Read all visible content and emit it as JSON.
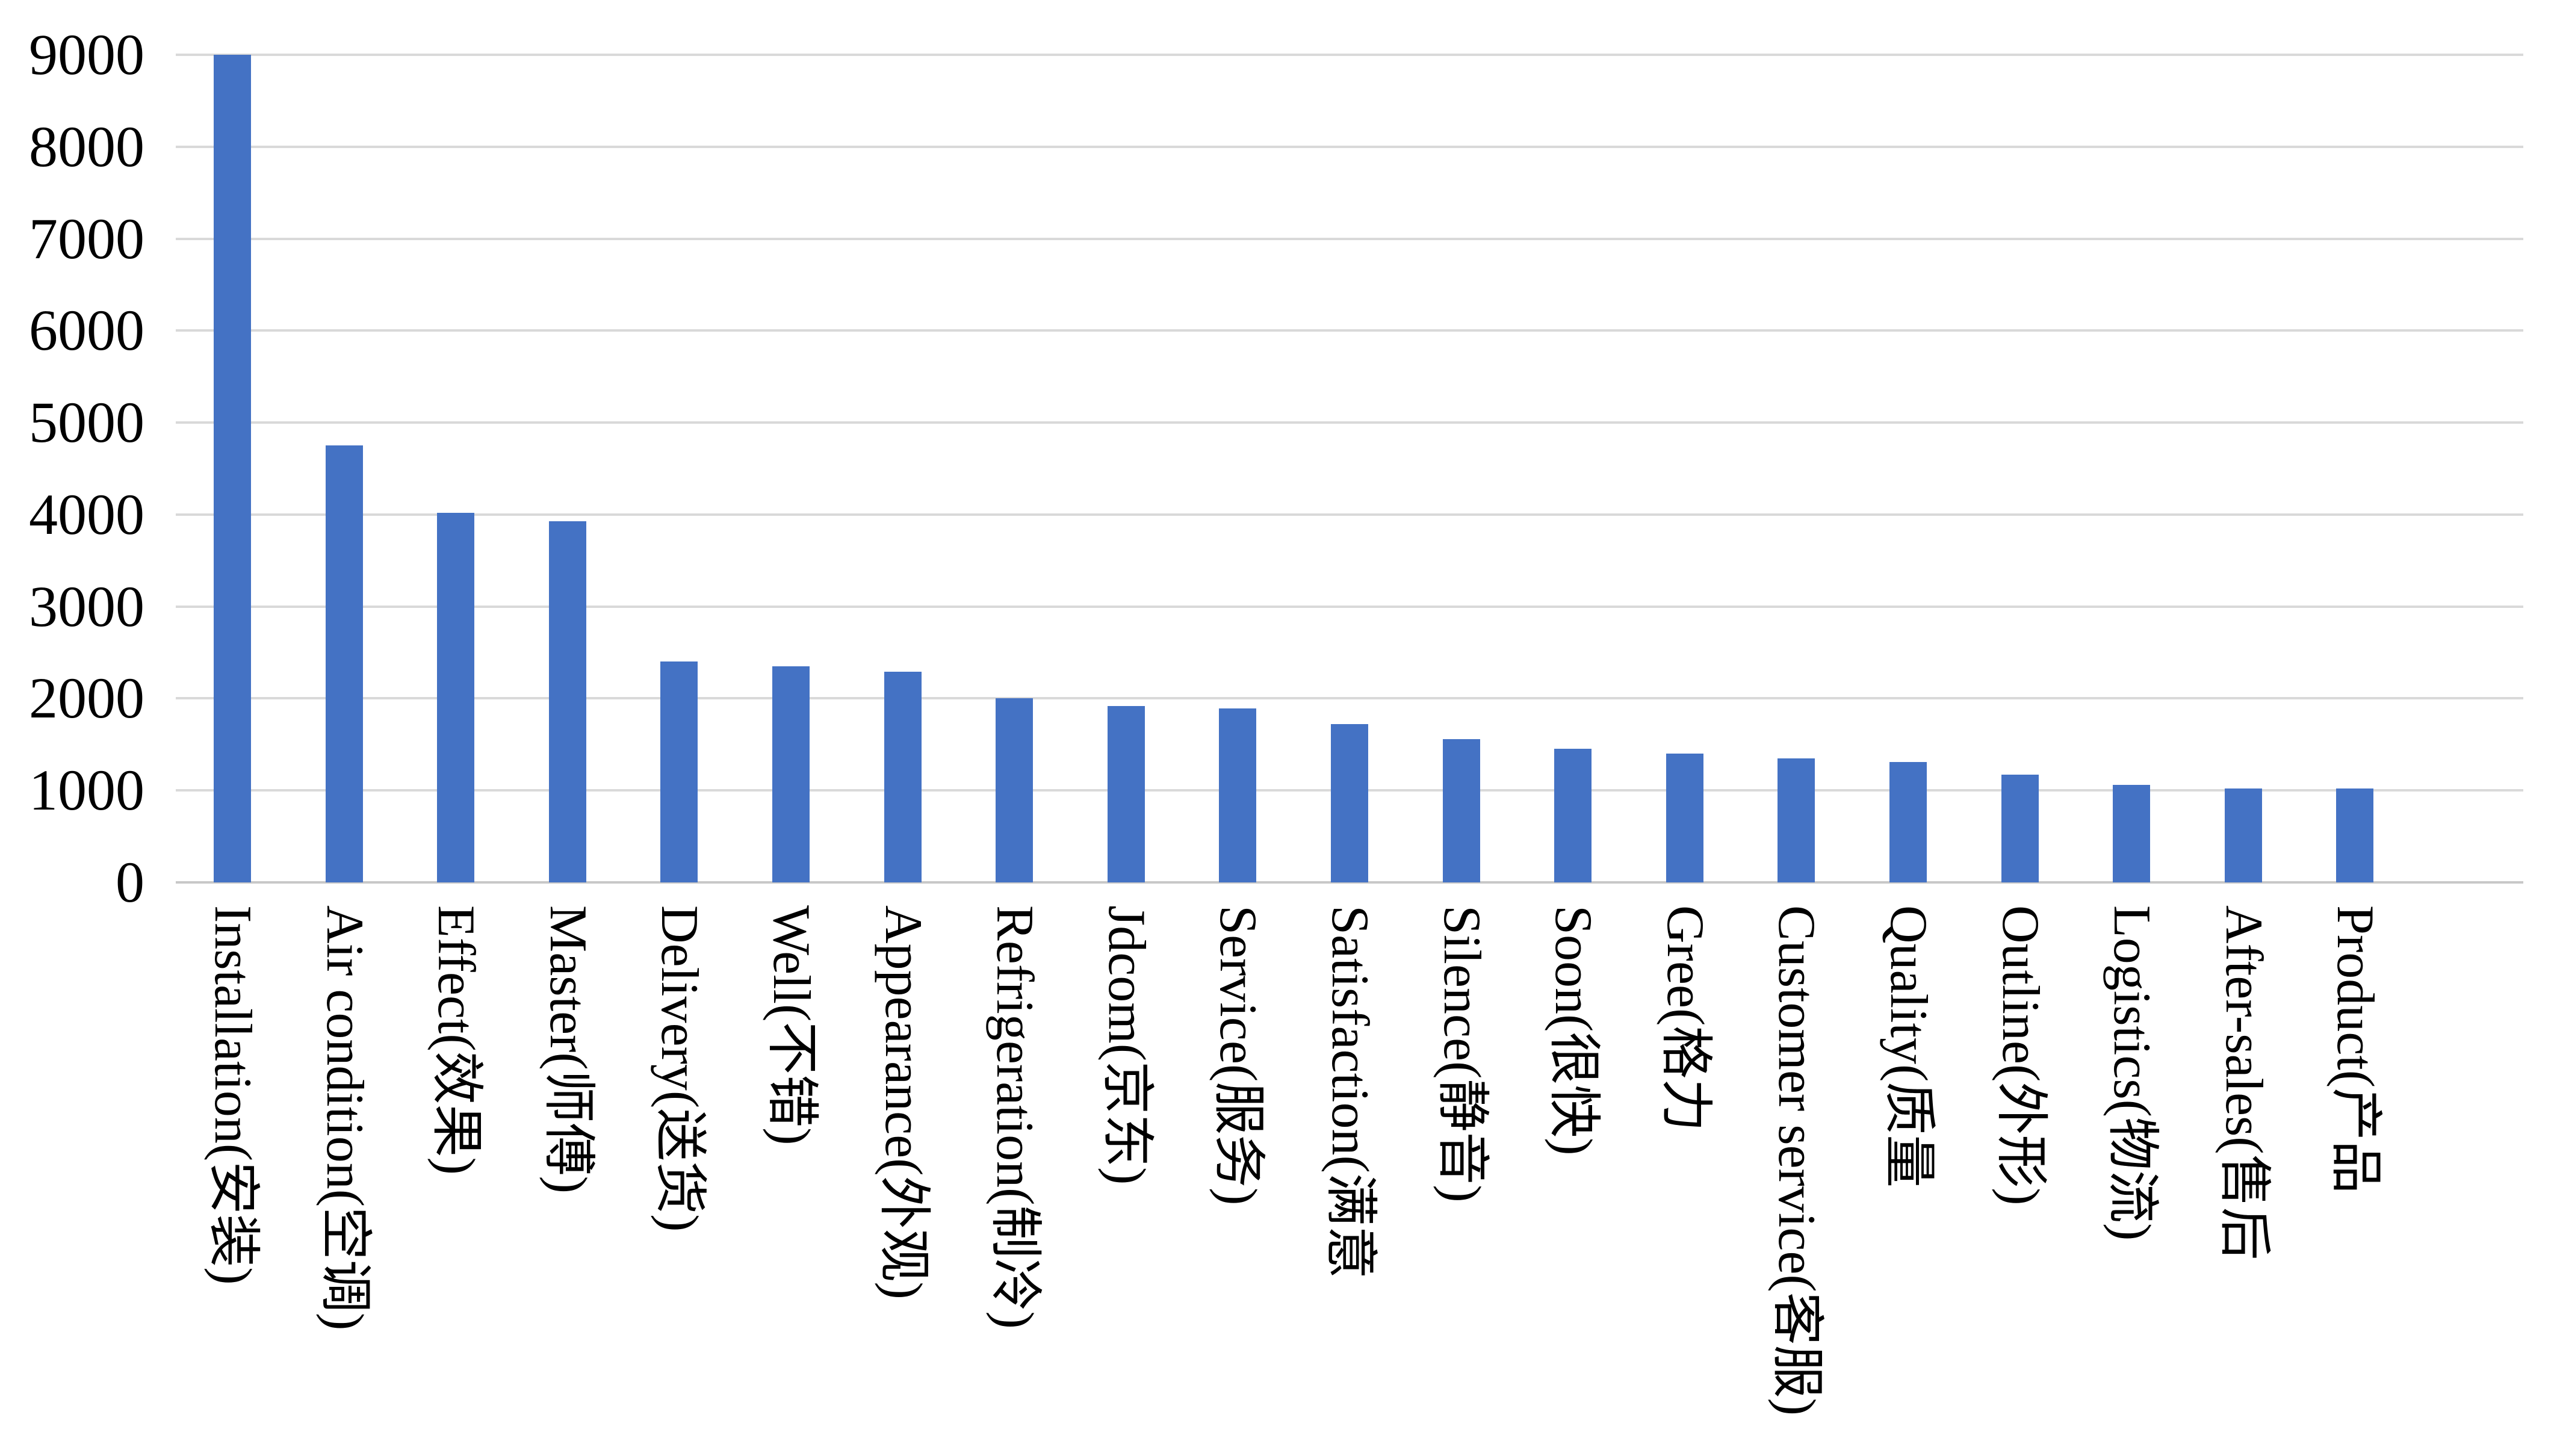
{
  "chart_data": {
    "type": "bar",
    "title": "",
    "xlabel": "",
    "ylabel": "",
    "categories": [
      "Installation(安装)",
      "Air condition(空调)",
      "Effect(效果)",
      "Master(师傅)",
      "Delivery(送货)",
      "Well(不错)",
      "Appearance(外观)",
      "Refrigeration(制冷)",
      "Jdcom(京东)",
      "Service(服务)",
      "Satisfaction(满意",
      "Silence(静音)",
      "Soon(很快)",
      "Gree(格力",
      "Customer service(客服)",
      "Quality(质量",
      "Outline(外形)",
      "Logistics(物流)",
      "After-sales(售后",
      "Product(产品"
    ],
    "values": [
      9000,
      4750,
      4020,
      3930,
      2400,
      2350,
      2290,
      2000,
      1920,
      1890,
      1720,
      1560,
      1450,
      1400,
      1350,
      1310,
      1170,
      1060,
      1020,
      1020
    ],
    "ylim": [
      0,
      9000
    ],
    "ytick_step": 1000,
    "yticks": [
      "0",
      "1000",
      "2000",
      "3000",
      "4000",
      "5000",
      "6000",
      "7000",
      "8000",
      "9000"
    ],
    "grid": "horizontal",
    "legend": "none",
    "category_label_rotation_deg": 90,
    "colors": {
      "bar": "#4472C4",
      "gridline": "#D9D9D9",
      "axis_line": "#C8C8C8",
      "text": "#000000",
      "background": "#FFFFFF"
    }
  }
}
